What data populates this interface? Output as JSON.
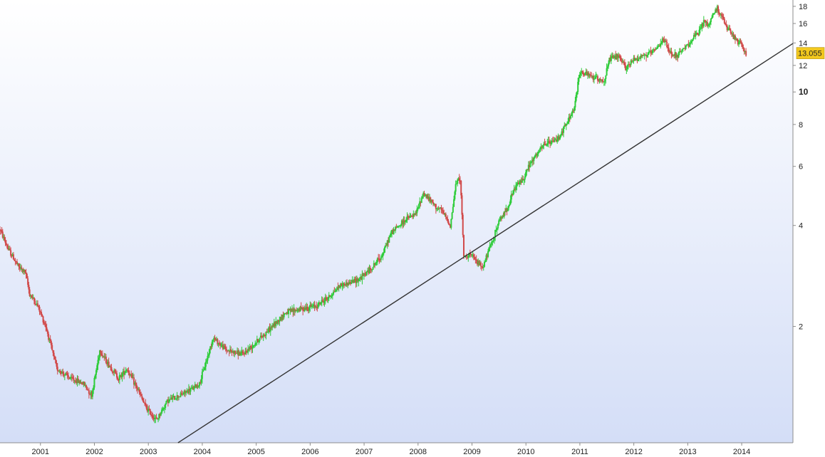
{
  "chart_data": {
    "type": "candlestick",
    "title": "",
    "xlabel": "",
    "ylabel": "",
    "x_ticks": [
      "2001",
      "2002",
      "2003",
      "2004",
      "2005",
      "2006",
      "2007",
      "2008",
      "2009",
      "2010",
      "2011",
      "2012",
      "2013",
      "2014"
    ],
    "y_ticks": [
      "2",
      "4",
      "6",
      "8",
      "10",
      "12",
      "14",
      "16",
      "18"
    ],
    "y_bold_tick": "10",
    "xlim": [
      2000.25,
      2014.95
    ],
    "ylim": [
      0.9,
      18.8
    ],
    "y_scale": "log",
    "last_price": "13.055",
    "colors": {
      "up": "#2ecc3a",
      "down": "#d14a4a",
      "trendline": "#333333",
      "last_price_badge": "#f2c81e",
      "background_top": "#ffffff",
      "background_bottom": "#d4def7"
    },
    "series": [
      {
        "kind": "price",
        "x": [
          2000.25,
          2000.4,
          2000.5,
          2000.6,
          2000.72,
          2000.8,
          2000.95,
          2001.1,
          2001.3,
          2001.55,
          2001.8,
          2001.95,
          2002.1,
          2002.25,
          2002.45,
          2002.6,
          2002.8,
          2002.95,
          2003.15,
          2003.35,
          2003.6,
          2003.8,
          2003.95,
          2004.2,
          2004.45,
          2004.75,
          2005.0,
          2005.3,
          2005.55,
          2005.8,
          2006.1,
          2006.35,
          2006.55,
          2006.75,
          2006.95,
          2007.15,
          2007.35,
          2007.5,
          2007.65,
          2007.8,
          2007.95,
          2008.1,
          2008.3,
          2008.45,
          2008.6,
          2008.7,
          2008.78,
          2008.85,
          2008.95,
          2009.1,
          2009.2,
          2009.35,
          2009.5,
          2009.65,
          2009.8,
          2009.95,
          2010.05,
          2010.2,
          2010.35,
          2010.5,
          2010.6,
          2010.75,
          2010.9,
          2011.0,
          2011.15,
          2011.3,
          2011.45,
          2011.55,
          2011.7,
          2011.85,
          2012.0,
          2012.15,
          2012.3,
          2012.45,
          2012.55,
          2012.65,
          2012.8,
          2012.95,
          2013.1,
          2013.2,
          2013.3,
          2013.38,
          2013.45,
          2013.55,
          2013.65,
          2013.72,
          2013.8,
          2013.9,
          2014.0,
          2014.08
        ],
        "values": [
          3.9,
          3.4,
          3.2,
          3.0,
          2.9,
          2.5,
          2.3,
          2.0,
          1.5,
          1.4,
          1.35,
          1.25,
          1.7,
          1.55,
          1.4,
          1.5,
          1.3,
          1.15,
          1.05,
          1.2,
          1.25,
          1.3,
          1.35,
          1.85,
          1.7,
          1.65,
          1.8,
          2.0,
          2.2,
          2.25,
          2.3,
          2.45,
          2.65,
          2.7,
          2.8,
          3.0,
          3.3,
          3.8,
          4.0,
          4.2,
          4.3,
          5.0,
          4.6,
          4.4,
          4.0,
          5.3,
          5.6,
          3.2,
          3.3,
          3.1,
          3.0,
          3.5,
          4.1,
          4.5,
          5.2,
          5.5,
          6.0,
          6.5,
          7.0,
          7.1,
          7.3,
          8.0,
          9.0,
          11.5,
          11.2,
          11.0,
          10.8,
          12.5,
          12.8,
          11.8,
          12.5,
          12.8,
          13.0,
          13.5,
          14.5,
          13.2,
          12.8,
          13.5,
          14.5,
          15.0,
          16.2,
          15.8,
          16.8,
          17.8,
          16.5,
          15.5,
          15.0,
          14.2,
          13.8,
          13.0
        ]
      },
      {
        "kind": "trendline",
        "x": [
          2003.55,
          2014.95
        ],
        "values": [
          0.9,
          13.95
        ]
      }
    ]
  }
}
